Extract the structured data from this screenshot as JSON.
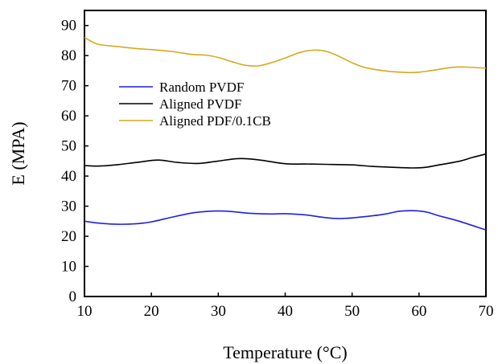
{
  "chart_data": {
    "type": "line",
    "title": "",
    "xlabel": "Temperature (°C)",
    "ylabel": "E (MPA)",
    "xlim": [
      10,
      70
    ],
    "ylim": [
      0,
      95
    ],
    "xticks": [
      10,
      20,
      30,
      40,
      50,
      60,
      70
    ],
    "yticks": [
      0,
      10,
      20,
      30,
      40,
      50,
      60,
      70,
      80,
      90
    ],
    "grid": false,
    "legend_position": "upper-left",
    "series": [
      {
        "name": "Random PVDF",
        "color": "#1f1fe6",
        "x": [
          10,
          12,
          15,
          18,
          20,
          23,
          26,
          28,
          30,
          32,
          35,
          38,
          40,
          43,
          46,
          48,
          50,
          53,
          55,
          57,
          59,
          61,
          63,
          66,
          70
        ],
        "y": [
          25,
          24.4,
          24,
          24.2,
          24.8,
          26.3,
          27.7,
          28.2,
          28.4,
          28.2,
          27.6,
          27.4,
          27.5,
          27.1,
          26.2,
          25.9,
          26.1,
          26.8,
          27.4,
          28.3,
          28.5,
          28.1,
          26.8,
          25.0,
          22.1
        ]
      },
      {
        "name": "Aligned PVDF",
        "color": "#000000",
        "x": [
          10,
          12,
          15,
          18,
          21,
          24,
          27,
          30,
          33,
          36,
          40,
          43,
          46,
          50,
          53,
          56,
          59,
          61,
          63,
          66,
          68,
          70
        ],
        "y": [
          43.5,
          43.3,
          43.8,
          44.6,
          45.3,
          44.5,
          44.2,
          45.0,
          45.8,
          45.4,
          44.1,
          44.0,
          43.9,
          43.7,
          43.2,
          42.9,
          42.7,
          42.9,
          43.7,
          44.9,
          46.2,
          47.3
        ]
      },
      {
        "name": "Aligned PDF/0.1CB",
        "color": "#d4aa1c",
        "x": [
          10,
          12,
          15,
          18,
          20,
          23,
          26,
          28,
          30,
          32,
          34,
          36,
          38,
          40,
          42,
          44,
          46,
          48,
          50,
          52,
          55,
          58,
          60,
          62,
          65,
          67,
          70
        ],
        "y": [
          86,
          83.8,
          83.0,
          82.3,
          82.0,
          81.4,
          80.4,
          80.2,
          79.4,
          78.0,
          76.8,
          76.6,
          77.7,
          79.2,
          80.9,
          81.8,
          81.5,
          79.8,
          77.6,
          76.0,
          74.9,
          74.4,
          74.5,
          75.1,
          76.1,
          76.2,
          75.8
        ]
      }
    ]
  }
}
